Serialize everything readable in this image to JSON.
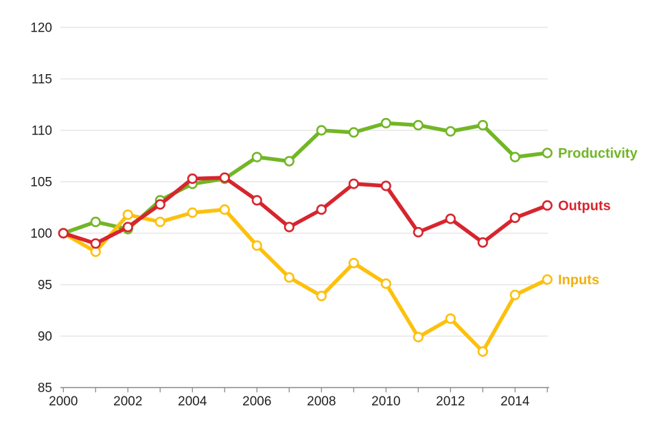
{
  "chart_data": {
    "type": "line",
    "title": "",
    "xlabel": "",
    "ylabel": "",
    "x": [
      2000,
      2001,
      2002,
      2003,
      2004,
      2005,
      2006,
      2007,
      2008,
      2009,
      2010,
      2011,
      2012,
      2013,
      2014,
      2015
    ],
    "series": [
      {
        "name": "Productivity",
        "color": "#72b626",
        "label_color": "#72b626",
        "values": [
          100,
          101.1,
          100.4,
          103.2,
          104.8,
          105.3,
          107.4,
          107.0,
          110.0,
          109.8,
          110.7,
          110.5,
          109.9,
          110.5,
          107.4,
          107.8
        ]
      },
      {
        "name": "Outputs",
        "color": "#d7252e",
        "label_color": "#d7252e",
        "values": [
          100,
          99.0,
          100.6,
          102.8,
          105.3,
          105.4,
          103.2,
          100.6,
          102.3,
          104.8,
          104.6,
          100.1,
          101.4,
          99.1,
          101.5,
          102.7
        ]
      },
      {
        "name": "Inputs",
        "color": "#fdc00d",
        "label_color": "#f2b00c",
        "values": [
          100,
          98.2,
          101.8,
          101.1,
          102.0,
          102.3,
          98.8,
          95.7,
          93.9,
          97.1,
          95.1,
          89.9,
          91.7,
          88.5,
          94.0,
          95.5
        ]
      }
    ],
    "ylim": [
      85,
      120
    ],
    "yticks": [
      85,
      90,
      95,
      100,
      105,
      110,
      115,
      120
    ],
    "xticks": [
      2000,
      2002,
      2004,
      2006,
      2008,
      2010,
      2012,
      2014
    ],
    "grid": true,
    "legend_position": "right-end-of-lines",
    "draw_order": [
      0,
      2,
      1
    ],
    "marker": "circle-open-white",
    "axis_color": "#898989",
    "grid_color": "#d9d9d9",
    "tick_label_color": "#1f1f1f"
  }
}
